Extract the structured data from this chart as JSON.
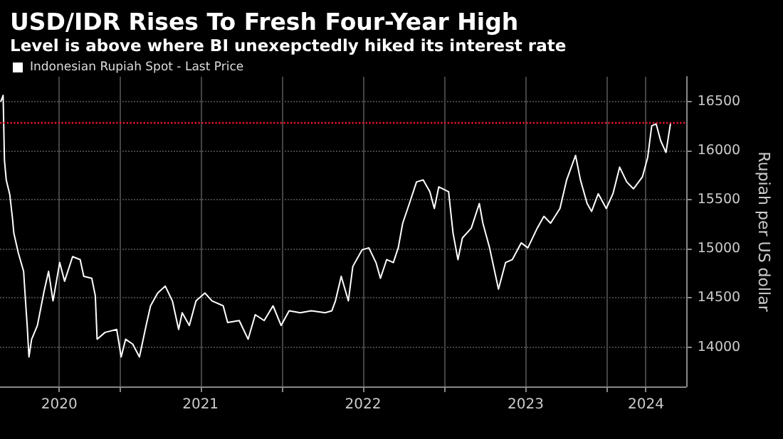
{
  "chart_data": {
    "type": "line",
    "title": "USD/IDR Rises To Fresh Four-Year High",
    "subtitle": "Level is above where BI unexepctedly hiked its interest rate",
    "ylabel": "Rupiah per US dollar",
    "series": [
      {
        "name": "Indonesian Rupiah Spot - Last Price",
        "color": "#ffffff",
        "x": [
          "2020-04-10",
          "2020-04-15",
          "2020-04-18",
          "2020-04-22",
          "2020-04-30",
          "2020-05-06",
          "2020-05-09",
          "2020-05-19",
          "2020-05-31",
          "2020-06-05",
          "2020-06-08",
          "2020-06-12",
          "2020-06-18",
          "2020-07-01",
          "2020-07-16",
          "2020-07-26",
          "2020-08-05",
          "2020-08-20",
          "2020-08-31",
          "2020-09-18",
          "2020-10-05",
          "2020-10-13",
          "2020-10-31",
          "2020-11-08",
          "2020-11-12",
          "2020-11-30",
          "2020-12-26",
          "2021-01-05",
          "2021-01-15",
          "2021-01-31",
          "2021-02-15",
          "2021-03-02",
          "2021-03-12",
          "2021-03-28",
          "2021-04-14",
          "2021-04-30",
          "2021-05-14",
          "2021-05-22",
          "2021-06-07",
          "2021-06-22",
          "2021-07-12",
          "2021-07-28",
          "2021-08-22",
          "2021-09-01",
          "2021-09-27",
          "2021-10-17",
          "2021-11-02",
          "2021-11-22",
          "2021-12-12",
          "2021-12-30",
          "2022-01-17",
          "2022-02-11",
          "2022-03-08",
          "2022-04-08",
          "2022-04-23",
          "2022-05-01",
          "2022-05-14",
          "2022-05-30",
          "2022-06-09",
          "2022-06-30",
          "2022-07-15",
          "2022-07-31",
          "2022-08-10",
          "2022-08-24",
          "2022-09-08",
          "2022-09-19",
          "2022-09-29",
          "2022-10-14",
          "2022-10-30",
          "2022-11-14",
          "2022-11-29",
          "2022-12-09",
          "2022-12-19",
          "2023-01-10",
          "2023-01-20",
          "2023-01-31",
          "2023-02-10",
          "2023-03-02",
          "2023-03-20",
          "2023-03-28",
          "2023-04-12",
          "2023-05-02",
          "2023-05-18",
          "2023-06-02",
          "2023-06-22",
          "2023-07-07",
          "2023-07-28",
          "2023-08-12",
          "2023-08-27",
          "2023-09-17",
          "2023-10-02",
          "2023-10-22",
          "2023-11-02",
          "2023-11-17",
          "2023-11-27",
          "2023-12-12",
          "2023-12-30",
          "2024-01-14",
          "2024-01-29",
          "2024-02-14",
          "2024-02-29",
          "2024-03-20",
          "2024-04-01",
          "2024-04-10",
          "2024-04-20",
          "2024-04-30",
          "2024-05-12",
          "2024-05-22"
        ],
        "values": [
          16500,
          16560,
          15900,
          15700,
          15550,
          15310,
          15160,
          14960,
          14770,
          14420,
          14220,
          13900,
          14080,
          14220,
          14570,
          14770,
          14470,
          14860,
          14670,
          14920,
          14890,
          14720,
          14700,
          14520,
          14080,
          14150,
          14180,
          13900,
          14080,
          14030,
          13900,
          14220,
          14420,
          14550,
          14620,
          14470,
          14180,
          14350,
          14220,
          14470,
          14550,
          14470,
          14420,
          14250,
          14270,
          14080,
          14330,
          14270,
          14420,
          14220,
          14370,
          14350,
          14370,
          14350,
          14370,
          14470,
          14720,
          14470,
          14820,
          14990,
          15010,
          14860,
          14700,
          14890,
          14860,
          15010,
          15260,
          15460,
          15680,
          15700,
          15580,
          15410,
          15630,
          15580,
          15160,
          14890,
          15110,
          15210,
          15460,
          15260,
          15010,
          14590,
          14860,
          14890,
          15060,
          15010,
          15210,
          15330,
          15260,
          15410,
          15700,
          15950,
          15700,
          15460,
          15380,
          15560,
          15410,
          15560,
          15830,
          15680,
          15610,
          15730,
          15930,
          16250,
          16270,
          16100,
          15980,
          16270
        ]
      }
    ],
    "xlim": [
      "2020-04-08",
      "2024-06-26"
    ],
    "xticks": [
      {
        "value": "2020-08-19",
        "label": "2020"
      },
      {
        "value": "2021-01-01",
        "label": null
      },
      {
        "value": "2021-07-02",
        "label": "2021"
      },
      {
        "value": "2022-01-01",
        "label": null
      },
      {
        "value": "2022-07-02",
        "label": "2022"
      },
      {
        "value": "2023-01-01",
        "label": null
      },
      {
        "value": "2023-07-02",
        "label": "2023"
      },
      {
        "value": "2024-01-01",
        "label": null
      },
      {
        "value": "2024-03-28",
        "label": "2024"
      }
    ],
    "ylim": [
      13600,
      16750
    ],
    "yticks": [
      14000,
      14500,
      15000,
      15500,
      16000,
      16500
    ],
    "ref_lines": [
      {
        "axis": "y",
        "value": 16290,
        "color": "#e8152a",
        "line_style": "dotted"
      }
    ],
    "grid": true,
    "legend": "top left",
    "marker": "none",
    "line_style": "solid"
  }
}
